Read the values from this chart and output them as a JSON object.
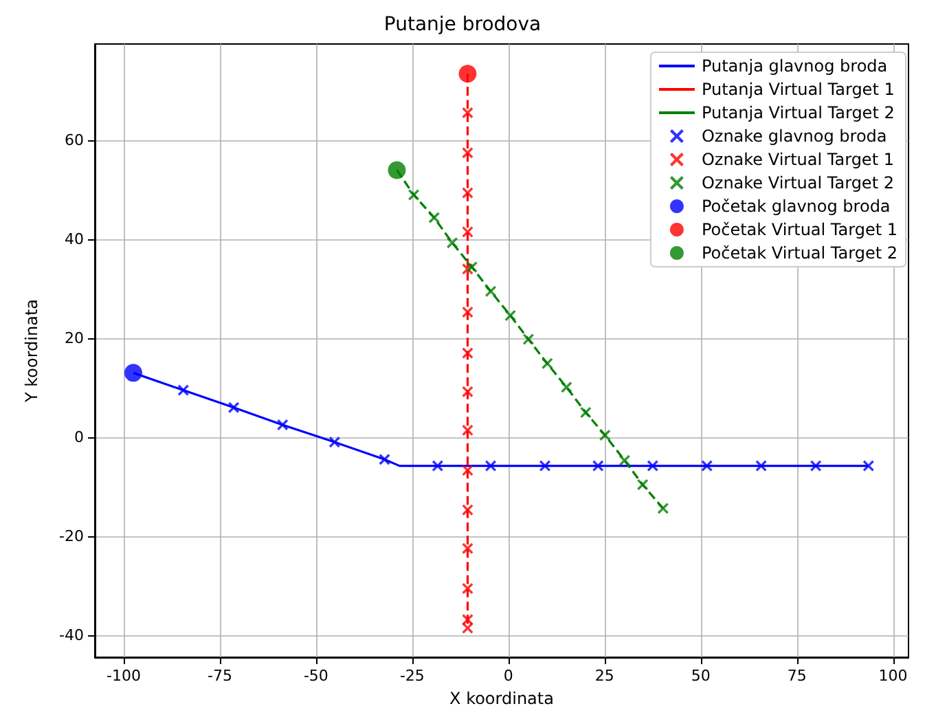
{
  "chart_data": {
    "type": "line",
    "title": "Putanje brodova",
    "xlabel": "X koordinata",
    "ylabel": "Y koordinata",
    "xlim": [
      -107.5,
      104
    ],
    "xticks": [
      -100,
      -75,
      -50,
      -25,
      0,
      25,
      50,
      75,
      100
    ],
    "ylim": [
      -44.5,
      79.5
    ],
    "yticks": [
      -40,
      -20,
      0,
      20,
      40,
      60
    ],
    "grid": true,
    "legend": "top right",
    "series": [
      {
        "type": "line",
        "name": "Putanja glavnog broda",
        "color": "#0000ff",
        "line_style": "solid",
        "marker": "none",
        "x": [
          -97.5,
          -84.5,
          -71.4,
          -58.7,
          -45.2,
          -32.2,
          -28.3,
          -18.4,
          -4.6,
          9.5,
          23.3,
          37.5,
          51.6,
          65.7,
          79.9,
          93.6
        ],
        "values": [
          13,
          9.5,
          6,
          2.5,
          -1,
          -4.5,
          -5.8,
          -5.8,
          -5.8,
          -5.8,
          -5.8,
          -5.8,
          -5.8,
          -5.8,
          -5.8,
          -5.8
        ]
      },
      {
        "type": "line",
        "name": "Putanja Virtual Target 1",
        "color": "#ff0000",
        "line_style": "dashed",
        "marker": "none",
        "x": [
          -10.6,
          -10.6,
          -10.6,
          -10.6,
          -10.6,
          -10.6,
          -10.6,
          -10.6,
          -10.6,
          -10.6,
          -10.6,
          -10.6,
          -10.6,
          -10.6,
          -10.6,
          -10.6
        ],
        "values": [
          73.5,
          65.6,
          57.5,
          49.4,
          41.5,
          34,
          25.3,
          17,
          9.2,
          1.4,
          -6.7,
          -14.7,
          -22.5,
          -30.6,
          -36.9,
          -38.6
        ]
      },
      {
        "type": "line",
        "name": "Putanja Virtual Target 2",
        "color": "#008000",
        "line_style": "dashed",
        "marker": "none",
        "x": [
          -29,
          -24.6,
          -19.3,
          -14.6,
          -9.5,
          -4.6,
          0.5,
          5.2,
          10.1,
          15.1,
          20.1,
          25.1,
          30.2,
          34.9,
          40.2
        ],
        "values": [
          54,
          49,
          44.4,
          39.3,
          34.4,
          29.5,
          24.6,
          19.8,
          14.9,
          10.1,
          5,
          0.4,
          -4.7,
          -9.6,
          -14.4
        ]
      },
      {
        "type": "scatter",
        "name": "Oznake glavnog broda",
        "color": "#0000ff",
        "marker": "cross",
        "x": [
          -84.5,
          -71.4,
          -58.7,
          -45.2,
          -32.2,
          -18.4,
          -4.6,
          9.5,
          23.3,
          37.5,
          51.6,
          65.7,
          79.9,
          93.6
        ],
        "values": [
          9.5,
          6,
          2.5,
          -1,
          -4.5,
          -5.8,
          -5.8,
          -5.8,
          -5.8,
          -5.8,
          -5.8,
          -5.8,
          -5.8,
          -5.8
        ]
      },
      {
        "type": "scatter",
        "name": "Oznake Virtual Target 1",
        "color": "#ff0000",
        "marker": "cross",
        "x": [
          -10.6,
          -10.6,
          -10.6,
          -10.6,
          -10.6,
          -10.6,
          -10.6,
          -10.6,
          -10.6,
          -10.6,
          -10.6,
          -10.6,
          -10.6,
          -10.6,
          -10.6
        ],
        "values": [
          65.6,
          57.5,
          49.4,
          41.5,
          34,
          25.3,
          17,
          9.2,
          1.4,
          -6.7,
          -14.7,
          -22.5,
          -30.6,
          -36.9,
          -38.6
        ]
      },
      {
        "type": "scatter",
        "name": "Oznake Virtual Target 2",
        "color": "#008000",
        "marker": "cross",
        "x": [
          -24.6,
          -19.3,
          -14.6,
          -9.5,
          -4.6,
          0.5,
          5.2,
          10.1,
          15.1,
          20.1,
          25.1,
          30.2,
          34.9,
          40.2
        ],
        "values": [
          49,
          44.4,
          39.3,
          34.4,
          29.5,
          24.6,
          19.8,
          14.9,
          10.1,
          5,
          0.4,
          -4.7,
          -9.6,
          -14.4
        ]
      },
      {
        "type": "scatter",
        "name": "Početak glavnog broda",
        "color": "#0000ff",
        "marker": "circle",
        "x": [
          -97.5
        ],
        "values": [
          13
        ]
      },
      {
        "type": "scatter",
        "name": "Početak Virtual Target 1",
        "color": "#ff0000",
        "marker": "circle",
        "x": [
          -10.6
        ],
        "values": [
          73.5
        ]
      },
      {
        "type": "scatter",
        "name": "Početak Virtual Target 2",
        "color": "#008000",
        "marker": "circle",
        "x": [
          -29
        ],
        "values": [
          54
        ]
      }
    ]
  }
}
